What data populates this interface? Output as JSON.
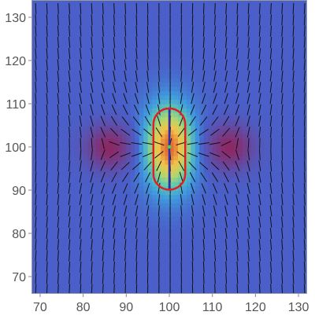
{
  "chart_data": {
    "type": "heatmap",
    "title": "",
    "xlabel": "",
    "ylabel": "",
    "xlim": [
      68,
      132
    ],
    "ylim": [
      66,
      134
    ],
    "x_ticks": [
      70,
      80,
      90,
      100,
      110,
      120,
      130
    ],
    "y_ticks": [
      70,
      80,
      90,
      100,
      110,
      120,
      130
    ],
    "x_tick_labels": [
      "70",
      "80",
      "90",
      "100",
      "110",
      "120",
      "130"
    ],
    "y_tick_labels": [
      "70",
      "80",
      "90",
      "100",
      "110",
      "120",
      "130"
    ],
    "grid": false,
    "legend": "none",
    "colormap": [
      "#4b3f9b",
      "#4a5fc9",
      "#3f9be0",
      "#5fc9b0",
      "#b7d66a",
      "#f3c24a",
      "#e06a32",
      "#8c1e3c"
    ],
    "field_features": [
      {
        "kind": "high",
        "x": 100,
        "y": 100,
        "value": 1.0
      },
      {
        "kind": "low",
        "x": 86,
        "y": 100,
        "value": -0.65
      },
      {
        "kind": "low",
        "x": 114,
        "y": 100,
        "value": -0.65
      }
    ],
    "director_field": {
      "type": "line-segments",
      "color": "#111111"
    },
    "defect_line": {
      "x": 100,
      "y_range": [
        90,
        109
      ],
      "color": "#2a2fb0"
    },
    "contour": {
      "center": [
        100,
        99.5
      ],
      "half_width": 3.7,
      "half_height": 9.4,
      "color": "#e02020"
    },
    "marker": {
      "x": 100,
      "y": 100,
      "color": "#33dd55"
    }
  }
}
